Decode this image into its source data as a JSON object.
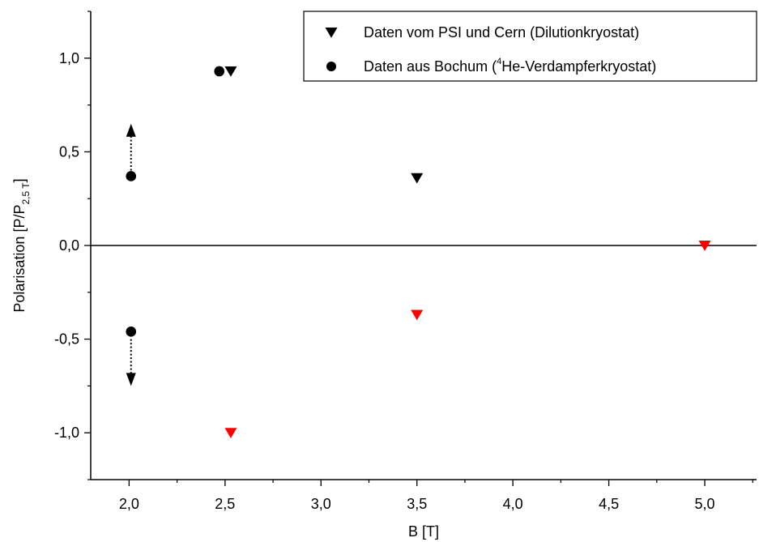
{
  "chart_data": {
    "type": "scatter",
    "xlabel": "B [T]",
    "ylabel": {
      "main": "Polarisation [P/P",
      "subscript": "2,5 T",
      "end": "]"
    },
    "xlim": [
      1.8,
      5.27
    ],
    "ylim": [
      -1.25,
      1.25
    ],
    "x_ticks": [
      2.0,
      2.5,
      3.0,
      3.5,
      4.0,
      4.5,
      5.0
    ],
    "x_tick_labels": [
      "2,0",
      "2,5",
      "3,0",
      "3,5",
      "4,0",
      "4,5",
      "5,0"
    ],
    "y_ticks": [
      -1.0,
      -0.5,
      0.0,
      0.5,
      1.0
    ],
    "y_tick_labels": [
      "-1,0",
      "-0,5",
      "0,0",
      "0,5",
      "1,0"
    ],
    "zero_line": true,
    "grid": false,
    "legend_position": "top-right",
    "series": [
      {
        "name": "Daten vom PSI und Cern (Dilutionkryostat)",
        "marker": "triangle-down",
        "points": [
          {
            "x": 2.53,
            "y": 0.93,
            "color": "#000000"
          },
          {
            "x": 3.5,
            "y": 0.36,
            "color": "#000000"
          },
          {
            "x": 2.53,
            "y": -1.0,
            "color": "#ff0000"
          },
          {
            "x": 3.5,
            "y": -0.37,
            "color": "#ff0000"
          },
          {
            "x": 5.0,
            "y": 0.0,
            "color": "#ff0000"
          }
        ]
      },
      {
        "name": "Daten aus Bochum (4He-Verdampferkryostat)",
        "marker": "circle",
        "points": [
          {
            "x": 2.47,
            "y": 0.93,
            "color": "#000000"
          },
          {
            "x": 2.01,
            "y": 0.37,
            "color": "#000000"
          },
          {
            "x": 2.01,
            "y": -0.46,
            "color": "#000000"
          }
        ]
      }
    ],
    "legend_entries": [
      {
        "marker": "triangle-down",
        "text": "Daten vom PSI und Cern (Dilutionkryostat)"
      },
      {
        "marker": "circle",
        "pre": "Daten aus Bochum (",
        "sup": "4",
        "post": "He-Verdampferkryostat)"
      }
    ],
    "annotations": [
      {
        "type": "arrow",
        "x": 2.01,
        "y_from": 0.4,
        "y_to": 0.65,
        "style": "dotted",
        "direction": "up"
      },
      {
        "type": "arrow",
        "x": 2.01,
        "y_from": -0.5,
        "y_to": -0.75,
        "style": "dotted",
        "direction": "down"
      }
    ],
    "colors": {
      "axis": "#000000",
      "black_marker": "#000000",
      "red_marker": "#ff0000"
    }
  }
}
